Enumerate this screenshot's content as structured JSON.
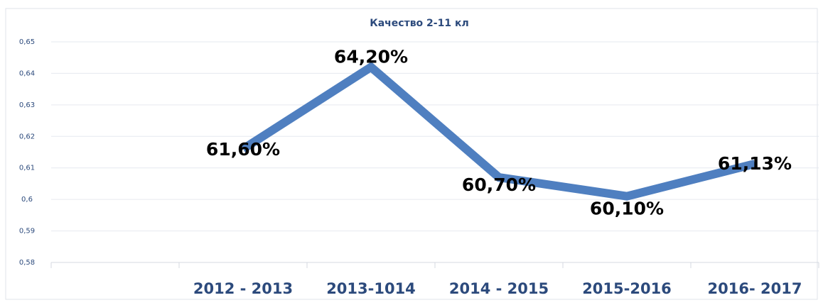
{
  "chart_data": {
    "type": "line",
    "title": "Качество 2-11 кл",
    "categories": [
      null,
      "2012 - 2013",
      "2013-1014",
      "2014 - 2015",
      "2015-2016",
      "2016- 2017"
    ],
    "series": [
      {
        "name": "Качество",
        "color": "#4f7fc0",
        "values": [
          null,
          0.616,
          0.642,
          0.607,
          0.601,
          0.6113
        ],
        "value_labels": [
          null,
          "61,60%",
          "64,20%",
          "60,70%",
          "60,10%",
          "61,13%"
        ]
      }
    ],
    "ylim": [
      0.58,
      0.65
    ],
    "yticks": [
      {
        "value": 0.58,
        "label": "0,58"
      },
      {
        "value": 0.59,
        "label": "0,59"
      },
      {
        "value": 0.6,
        "label": "0,6"
      },
      {
        "value": 0.61,
        "label": "0,61"
      },
      {
        "value": 0.62,
        "label": "0,62"
      },
      {
        "value": 0.63,
        "label": "0,63"
      },
      {
        "value": 0.64,
        "label": "0,64"
      },
      {
        "value": 0.65,
        "label": "0,65"
      }
    ],
    "grid": true
  }
}
